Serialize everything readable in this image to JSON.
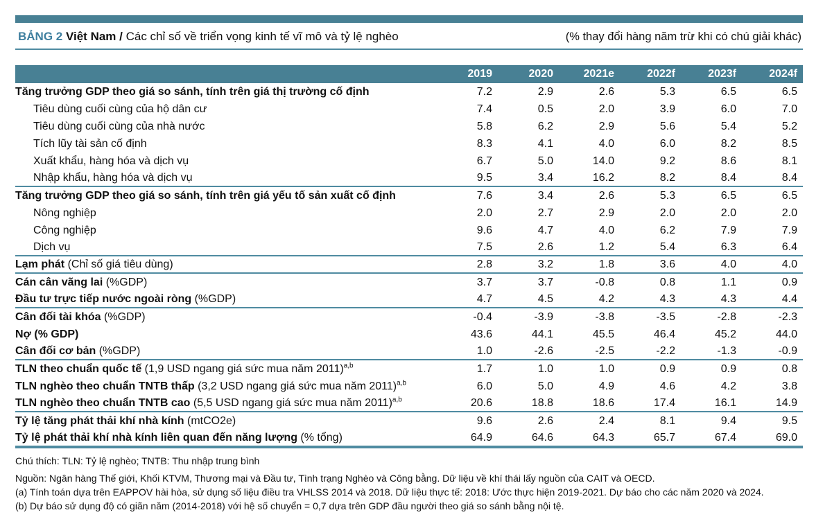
{
  "header": {
    "table_label": "BẢNG 2",
    "country": "Việt Nam /",
    "title": "Các chỉ số về triển vọng kinh tế vĩ mô và tỷ lệ nghèo",
    "note": "(% thay đổi hàng năm trừ khi có chú giải khác)"
  },
  "table": {
    "columns": [
      "2019",
      "2020",
      "2021e",
      "2022f",
      "2023f",
      "2024f"
    ],
    "rows": [
      {
        "label_bold": "Tăng trưởng GDP theo giá so sánh, tính trên giá thị trường cố định",
        "label_rest": "",
        "sup": "",
        "indent": false,
        "sep_after": false,
        "values": [
          "7.2",
          "2.9",
          "2.6",
          "5.3",
          "6.5",
          "6.5"
        ]
      },
      {
        "label_bold": "",
        "label_rest": "Tiêu dùng cuối cùng của hộ dân cư",
        "sup": "",
        "indent": true,
        "sep_after": false,
        "values": [
          "7.4",
          "0.5",
          "2.0",
          "3.9",
          "6.0",
          "7.0"
        ]
      },
      {
        "label_bold": "",
        "label_rest": "Tiêu dùng cuối cùng của nhà nước",
        "sup": "",
        "indent": true,
        "sep_after": false,
        "values": [
          "5.8",
          "6.2",
          "2.9",
          "5.6",
          "5.4",
          "5.2"
        ]
      },
      {
        "label_bold": "",
        "label_rest": "Tích lũy tài sản cố định",
        "sup": "",
        "indent": true,
        "sep_after": false,
        "values": [
          "8.3",
          "4.1",
          "4.0",
          "6.0",
          "8.2",
          "8.5"
        ]
      },
      {
        "label_bold": "",
        "label_rest": "Xuất khẩu, hàng hóa và dịch vụ",
        "sup": "",
        "indent": true,
        "sep_after": false,
        "values": [
          "6.7",
          "5.0",
          "14.0",
          "9.2",
          "8.6",
          "8.1"
        ]
      },
      {
        "label_bold": "",
        "label_rest": "Nhập khẩu, hàng hóa và dịch vụ",
        "sup": "",
        "indent": true,
        "sep_after": true,
        "values": [
          "9.5",
          "3.4",
          "16.2",
          "8.2",
          "8.4",
          "8.4"
        ]
      },
      {
        "label_bold": "Tăng trưởng GDP theo giá so sánh, tính trên giá yếu tố sản xuất cố định",
        "label_rest": "",
        "sup": "",
        "indent": false,
        "sep_after": false,
        "values": [
          "7.6",
          "3.4",
          "2.6",
          "5.3",
          "6.5",
          "6.5"
        ]
      },
      {
        "label_bold": "",
        "label_rest": "Nông nghiệp",
        "sup": "",
        "indent": true,
        "sep_after": false,
        "values": [
          "2.0",
          "2.7",
          "2.9",
          "2.0",
          "2.0",
          "2.0"
        ]
      },
      {
        "label_bold": "",
        "label_rest": "Công nghiệp",
        "sup": "",
        "indent": true,
        "sep_after": false,
        "values": [
          "9.6",
          "4.7",
          "4.0",
          "6.2",
          "7.9",
          "7.9"
        ]
      },
      {
        "label_bold": "",
        "label_rest": "Dịch vụ",
        "sup": "",
        "indent": true,
        "sep_after": true,
        "values": [
          "7.5",
          "2.6",
          "1.2",
          "5.4",
          "6.3",
          "6.4"
        ]
      },
      {
        "label_bold": "Lạm phát",
        "label_rest": " (Chỉ số giá tiêu dùng)",
        "sup": "",
        "indent": false,
        "sep_after": true,
        "values": [
          "2.8",
          "3.2",
          "1.8",
          "3.6",
          "4.0",
          "4.0"
        ]
      },
      {
        "label_bold": "Cán cân vãng lai",
        "label_rest": " (%GDP)",
        "sup": "",
        "indent": false,
        "sep_after": false,
        "values": [
          "3.7",
          "3.7",
          "-0.8",
          "0.8",
          "1.1",
          "0.9"
        ]
      },
      {
        "label_bold": "Đầu tư trực tiếp nước ngoài ròng",
        "label_rest": " (%GDP)",
        "sup": "",
        "indent": false,
        "sep_after": true,
        "values": [
          "4.7",
          "4.5",
          "4.2",
          "4.3",
          "4.3",
          "4.4"
        ]
      },
      {
        "label_bold": "Cân đối tài khóa",
        "label_rest": " (%GDP)",
        "sup": "",
        "indent": false,
        "sep_after": false,
        "values": [
          "-0.4",
          "-3.9",
          "-3.8",
          "-3.5",
          "-2.8",
          "-2.3"
        ]
      },
      {
        "label_bold": "Nợ (% GDP)",
        "label_rest": "",
        "sup": "",
        "indent": false,
        "sep_after": false,
        "values": [
          "43.6",
          "44.1",
          "45.5",
          "46.4",
          "45.2",
          "44.0"
        ]
      },
      {
        "label_bold": "Cân đối cơ bản",
        "label_rest": " (%GDP)",
        "sup": "",
        "indent": false,
        "sep_after": true,
        "values": [
          "1.0",
          "-2.6",
          "-2.5",
          "-2.2",
          "-1.3",
          "-0.9"
        ]
      },
      {
        "label_bold": "TLN theo chuẩn quốc tế",
        "label_rest": " (1,9 USD ngang giá sức mua năm 2011)",
        "sup": "a,b",
        "indent": false,
        "sep_after": false,
        "values": [
          "1.7",
          "1.0",
          "1.0",
          "0.9",
          "0.9",
          "0.8"
        ]
      },
      {
        "label_bold": "TLN nghèo theo chuẩn TNTB thấp",
        "label_rest": " (3,2 USD ngang giá sức mua năm 2011)",
        "sup": "a,b",
        "indent": false,
        "sep_after": false,
        "values": [
          "6.0",
          "5.0",
          "4.9",
          "4.6",
          "4.2",
          "3.8"
        ]
      },
      {
        "label_bold": "TLN nghèo theo chuẩn TNTB  cao",
        "label_rest": " (5,5 USD ngang giá sức mua năm 2011)",
        "sup": "a,b",
        "indent": false,
        "sep_after": true,
        "values": [
          "20.6",
          "18.8",
          "18.6",
          "17.4",
          "16.1",
          "14.9"
        ]
      },
      {
        "label_bold": "Tỷ lệ tăng phát thải khí nhà kính",
        "label_rest": " (mtCO2e)",
        "sup": "",
        "indent": false,
        "sep_after": false,
        "values": [
          "9.6",
          "2.6",
          "2.4",
          "8.1",
          "9.4",
          "9.5"
        ]
      },
      {
        "label_bold": "Tỷ lệ phát thải khí nhà kính liên quan đến năng lượng",
        "label_rest": " (% tổng)",
        "sup": "",
        "indent": false,
        "sep_after": true,
        "values": [
          "64.9",
          "64.6",
          "64.3",
          "65.7",
          "67.4",
          "69.0"
        ]
      }
    ]
  },
  "footnotes": [
    "Chú thích: TLN: Tỷ lệ nghèo; TNTB: Thu nhập trung bình",
    "Nguồn: Ngân hàng Thế giới, Khối KTVM, Thương mại và Đầu tư, Tình trạng Nghèo và Công bằng. Dữ liệu về khí thái lấy nguồn của CAIT và OECD.",
    "(a) Tính toán dựa trên EAPPOV hài hòa, sử dụng số liệu điều tra VHLSS 2014 và 2018. Dữ liệu thực tế: 2018: Ước thực hiện 2019-2021. Dự báo cho các năm 2020 và 2024.",
    "(b) Dự báo sử dụng độ có giãn năm (2014-2018) với hệ số chuyển = 0,7 dựa trên GDP đầu người theo giá so sánh bằng nội tệ."
  ]
}
